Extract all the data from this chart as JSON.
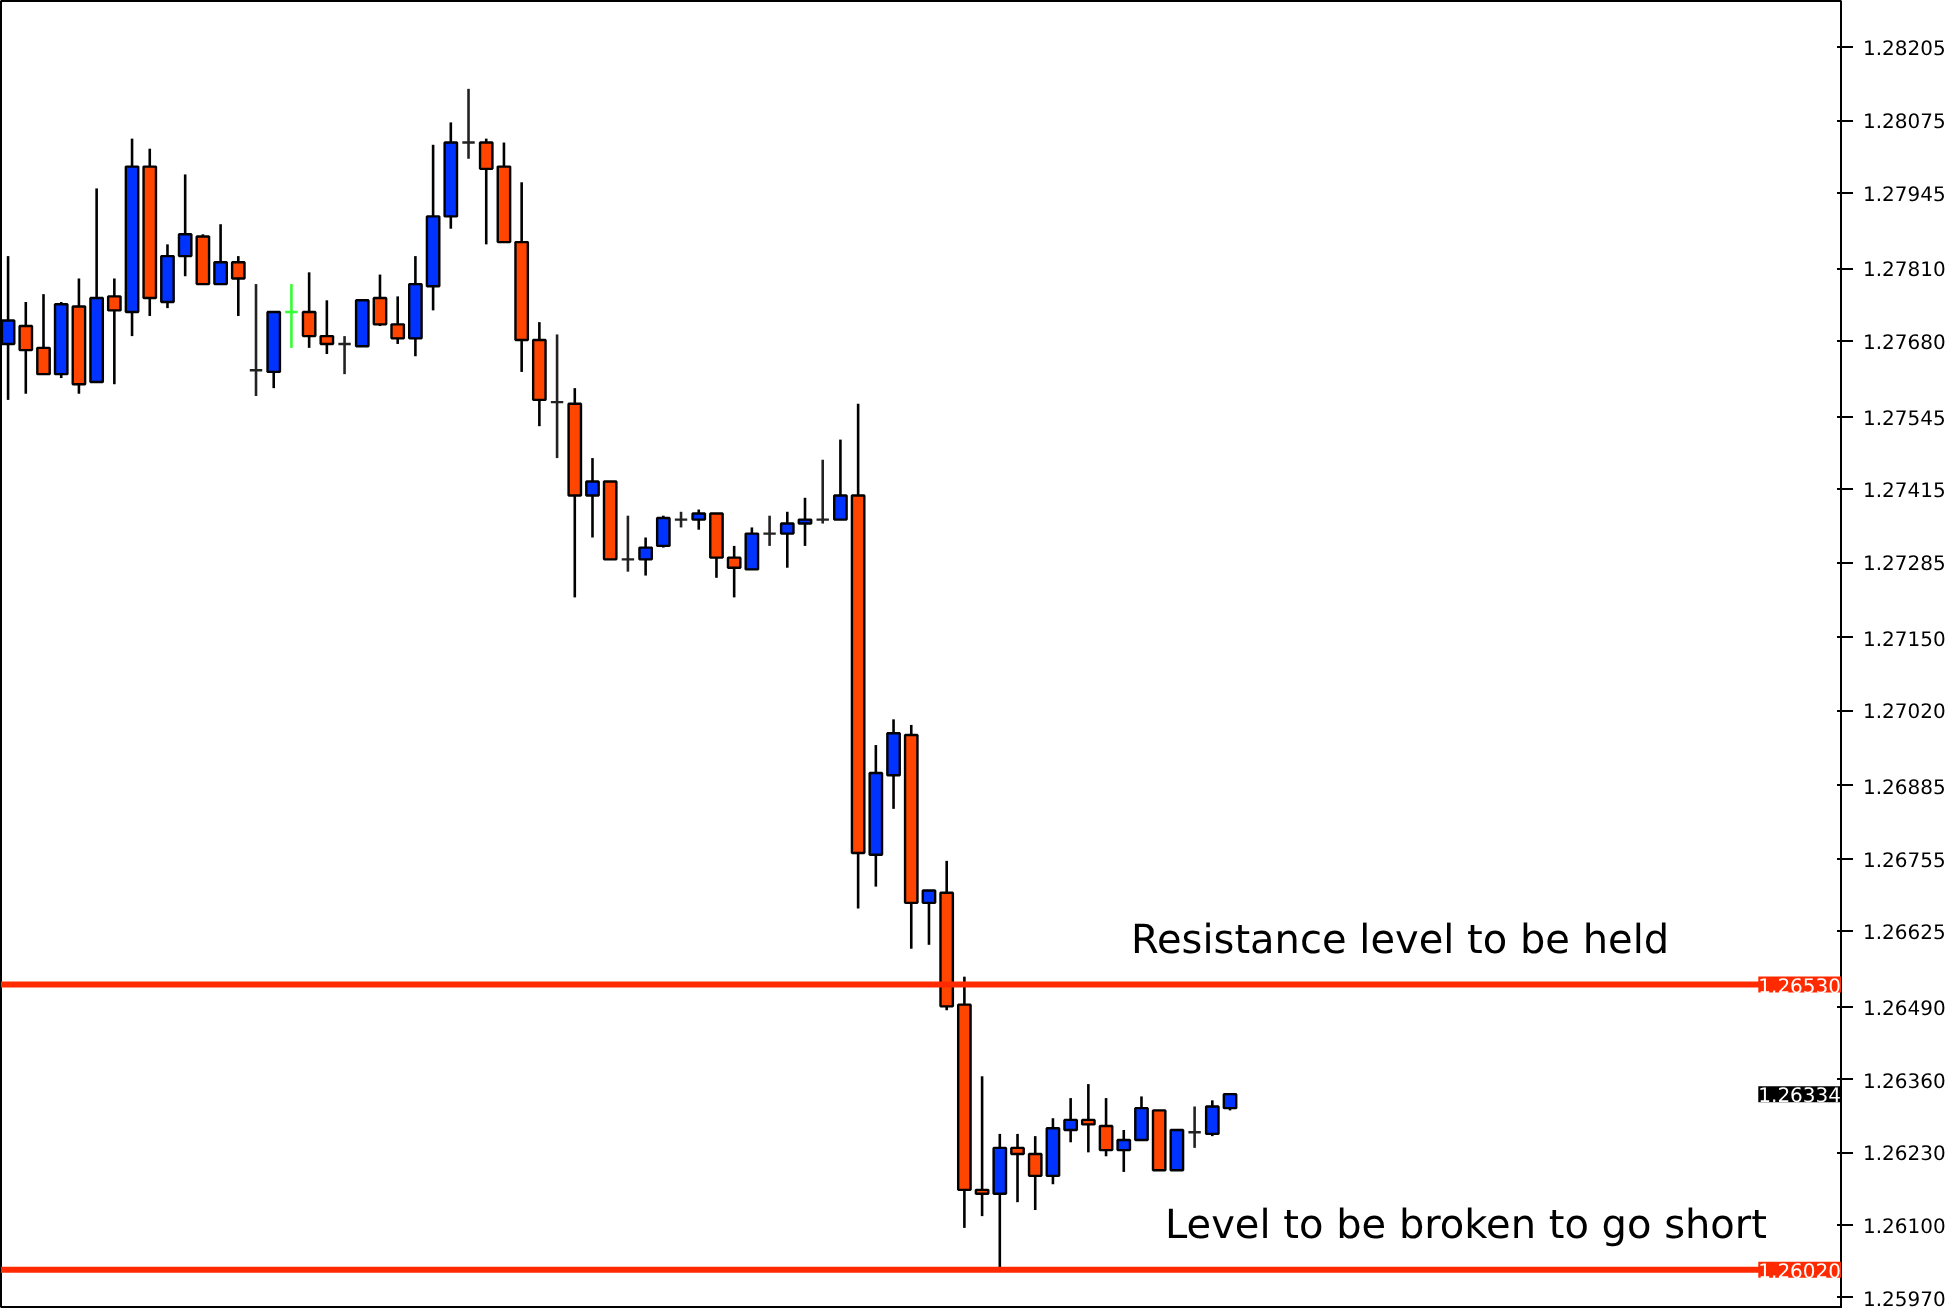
{
  "chart_data": {
    "type": "candlestick",
    "categories": [
      null,
      null,
      null,
      null,
      null,
      null,
      null,
      null,
      null,
      null,
      null,
      null,
      null,
      null,
      null,
      null,
      null,
      null,
      null,
      null,
      null,
      null,
      null,
      null,
      null,
      null,
      null,
      null,
      null,
      null,
      null,
      null,
      null,
      null,
      null,
      null,
      null,
      null,
      null,
      null,
      null,
      null,
      null,
      null,
      null,
      null,
      null,
      null,
      null,
      null,
      null,
      null,
      null,
      null,
      null,
      null,
      null,
      null,
      null,
      null,
      null,
      null,
      null,
      null,
      null,
      null,
      null,
      null,
      null,
      null,
      null,
      null,
      null,
      null,
      null,
      null,
      null,
      null,
      null,
      null,
      null,
      null,
      null,
      null,
      null,
      null,
      null,
      null,
      null,
      null,
      null,
      null,
      null,
      null,
      null,
      null,
      null,
      null,
      null,
      null,
      null,
      null,
      null,
      null
    ],
    "ohlc": [
      [
        1.27675,
        1.27832,
        1.27575,
        1.27717
      ],
      [
        1.27707,
        1.2775,
        1.27586,
        1.27664
      ],
      [
        1.27668,
        1.27764,
        1.27621,
        1.27621
      ],
      [
        1.27621,
        1.2775,
        1.27614,
        1.27746
      ],
      [
        1.27742,
        1.27792,
        1.27586,
        1.27603
      ],
      [
        1.27607,
        1.27953,
        1.27607,
        1.27757
      ],
      [
        1.2776,
        1.27792,
        1.27603,
        1.27735
      ],
      [
        1.27732,
        1.28042,
        1.27689,
        1.27992
      ],
      [
        1.27992,
        1.28024,
        1.27725,
        1.27757
      ],
      [
        1.2775,
        1.27853,
        1.27739,
        1.27832
      ],
      [
        1.27832,
        1.27978,
        1.27796,
        1.27871
      ],
      [
        1.27867,
        1.27871,
        1.27782,
        1.27782
      ],
      [
        1.27782,
        1.27889,
        1.27782,
        1.27821
      ],
      [
        1.27821,
        1.27832,
        1.27725,
        1.27792
      ],
      [
        1.27628,
        1.27782,
        1.27582,
        1.27628
      ],
      [
        1.27625,
        1.27732,
        1.27596,
        1.27732
      ],
      [
        1.27732,
        1.27782,
        1.27668,
        1.27732
      ],
      [
        1.27732,
        1.27803,
        1.27668,
        1.27689
      ],
      [
        1.27689,
        1.27753,
        1.27657,
        1.27675
      ],
      [
        1.27675,
        1.27689,
        1.27621,
        1.27675
      ],
      [
        1.27671,
        1.27753,
        1.27671,
        1.27753
      ],
      [
        1.27757,
        1.27799,
        1.27707,
        1.2771
      ],
      [
        1.2771,
        1.2776,
        1.27675,
        1.27685
      ],
      [
        1.27685,
        1.27832,
        1.27653,
        1.27782
      ],
      [
        1.27778,
        1.28031,
        1.27735,
        1.27903
      ],
      [
        1.27903,
        1.28071,
        1.27881,
        1.28035
      ],
      [
        1.28035,
        1.28131,
        1.28006,
        1.28035
      ],
      [
        1.28035,
        1.28042,
        1.27853,
        1.27988
      ],
      [
        1.27992,
        1.28035,
        1.27857,
        1.27857
      ],
      [
        1.27857,
        1.27964,
        1.27625,
        1.27682
      ],
      [
        1.27682,
        1.27714,
        1.27528,
        1.27575
      ],
      [
        1.27571,
        1.27692,
        1.27471,
        1.27571
      ],
      [
        1.27568,
        1.27596,
        1.27222,
        1.27404
      ],
      [
        1.27404,
        1.27471,
        1.27329,
        1.27429
      ],
      [
        1.27429,
        1.27429,
        1.2729,
        1.2729
      ],
      [
        1.2729,
        1.27368,
        1.27268,
        1.2729
      ],
      [
        1.2729,
        1.27329,
        1.27261,
        1.27311
      ],
      [
        1.27314,
        1.27368,
        1.27311,
        1.27364
      ],
      [
        1.27361,
        1.27375,
        1.27347,
        1.27361
      ],
      [
        1.27361,
        1.27379,
        1.27343,
        1.27372
      ],
      [
        1.27372,
        1.27372,
        1.27257,
        1.27293
      ],
      [
        1.27293,
        1.27314,
        1.27222,
        1.27275
      ],
      [
        1.27272,
        1.27347,
        1.27272,
        1.27336
      ],
      [
        1.27336,
        1.27368,
        1.27314,
        1.27336
      ],
      [
        1.27336,
        1.27375,
        1.27275,
        1.27354
      ],
      [
        1.27354,
        1.274,
        1.27314,
        1.27361
      ],
      [
        1.27361,
        1.27468,
        1.27354,
        1.27361
      ],
      [
        1.27361,
        1.27504,
        1.27361,
        1.27404
      ],
      [
        1.27404,
        1.27568,
        1.26666,
        1.26765
      ],
      [
        1.26762,
        1.26958,
        1.26705,
        1.26908
      ],
      [
        1.26904,
        1.27004,
        1.26844,
        1.26979
      ],
      [
        1.26976,
        1.26994,
        1.26594,
        1.26676
      ],
      [
        1.26676,
        1.26698,
        1.26601,
        1.26698
      ],
      [
        1.26694,
        1.26751,
        1.26484,
        1.26491
      ],
      [
        1.26494,
        1.26544,
        1.26095,
        1.26163
      ],
      [
        1.26163,
        1.26366,
        1.26116,
        1.26156
      ],
      [
        1.26156,
        1.26263,
        1.26024,
        1.26238
      ],
      [
        1.26238,
        1.26263,
        1.26141,
        1.26227
      ],
      [
        1.26227,
        1.26259,
        1.26127,
        1.26188
      ],
      [
        1.26188,
        1.26291,
        1.26173,
        1.26273
      ],
      [
        1.2627,
        1.26327,
        1.26248,
        1.26288
      ],
      [
        1.26288,
        1.26352,
        1.2623,
        1.2628
      ],
      [
        1.26277,
        1.26327,
        1.26223,
        1.26234
      ],
      [
        1.26234,
        1.2627,
        1.26195,
        1.26252
      ],
      [
        1.26252,
        1.2633,
        1.26252,
        1.26309
      ],
      [
        1.26305,
        1.26305,
        1.26198,
        1.26198
      ],
      [
        1.26198,
        1.2627,
        1.26198,
        1.2627
      ],
      [
        1.26266,
        1.26312,
        1.26238,
        1.26266
      ],
      [
        1.26263,
        1.26323,
        1.26259,
        1.26312
      ],
      [
        1.26309,
        1.26334,
        1.26305,
        1.26334
      ],
      null,
      null,
      null,
      null,
      null,
      null,
      null,
      null,
      null,
      null,
      null,
      null,
      null,
      null,
      null,
      null,
      null,
      null,
      null,
      null,
      null,
      null,
      null,
      null,
      null,
      null,
      null,
      null,
      null,
      null,
      null,
      null,
      null,
      null
    ],
    "colors": [
      "#0033ff",
      "#ff4500",
      "#ff4500",
      "#0033ff",
      "#ff4500",
      "#0033ff",
      "#ff4500",
      "#0033ff",
      "#ff4500",
      "#0033ff",
      "#0033ff",
      "#ff4500",
      "#0033ff",
      "#ff4500",
      "#222222",
      "#0033ff",
      "#33ff33",
      "#ff4500",
      "#ff4500",
      "#222222",
      "#0033ff",
      "#ff4500",
      "#ff4500",
      "#0033ff",
      "#0033ff",
      "#0033ff",
      "#222222",
      "#ff4500",
      "#ff4500",
      "#ff4500",
      "#ff4500",
      "#222222",
      "#ff4500",
      "#0033ff",
      "#ff4500",
      "#222222",
      "#0033ff",
      "#0033ff",
      "#222222",
      "#0033ff",
      "#ff4500",
      "#ff4500",
      "#0033ff",
      "#222222",
      "#0033ff",
      "#0033ff",
      "#222222",
      "#0033ff",
      "#ff4500",
      "#0033ff",
      "#0033ff",
      "#ff4500",
      "#0033ff",
      "#ff4500",
      "#ff4500",
      "#ff4500",
      "#0033ff",
      "#ff4500",
      "#ff4500",
      "#0033ff",
      "#0033ff",
      "#ff4500",
      "#ff4500",
      "#0033ff",
      "#0033ff",
      "#ff4500",
      "#0033ff",
      "#222222",
      "#0033ff",
      "#0033ff",
      null,
      null,
      null,
      null,
      null,
      null,
      null,
      null,
      null,
      null,
      null,
      null,
      null,
      null,
      null,
      null,
      null,
      null,
      null,
      null,
      null,
      null,
      null,
      null,
      null,
      null,
      null,
      null,
      null,
      null,
      null,
      null,
      null,
      null
    ],
    "ylim": [
      1.2595,
      1.28288
    ],
    "yticks": [
      1.28205,
      1.28075,
      1.27945,
      {
        "value": 1.2781,
        "label": "1.27810"
      },
      {
        "value": 1.2768,
        "label": "1.27680"
      },
      1.27545,
      1.27415,
      1.27285,
      {
        "value": 1.2715,
        "label": "1.27150"
      },
      {
        "value": 1.2702,
        "label": "1.27020"
      },
      1.26885,
      1.26755,
      1.26625,
      {
        "value": 1.2649,
        "label": "1.26490"
      },
      {
        "value": 1.2636,
        "label": "1.26360"
      },
      {
        "value": 1.2623,
        "label": "1.26230"
      },
      {
        "value": 1.261,
        "label": "1.26100"
      },
      {
        "value": 1.2597,
        "label": "1.25970"
      }
    ],
    "ref_lines": [
      {
        "axis": "y",
        "value": 1.2653,
        "label": "1.26530",
        "color": "#ff2a00"
      },
      {
        "axis": "y",
        "value": 1.2602,
        "label": "1.26020",
        "color": "#ff2a00"
      }
    ],
    "annotations": [
      "Resistance level to be held",
      "Level to be broken to go short",
      "1.26334"
    ],
    "grid": false
  }
}
